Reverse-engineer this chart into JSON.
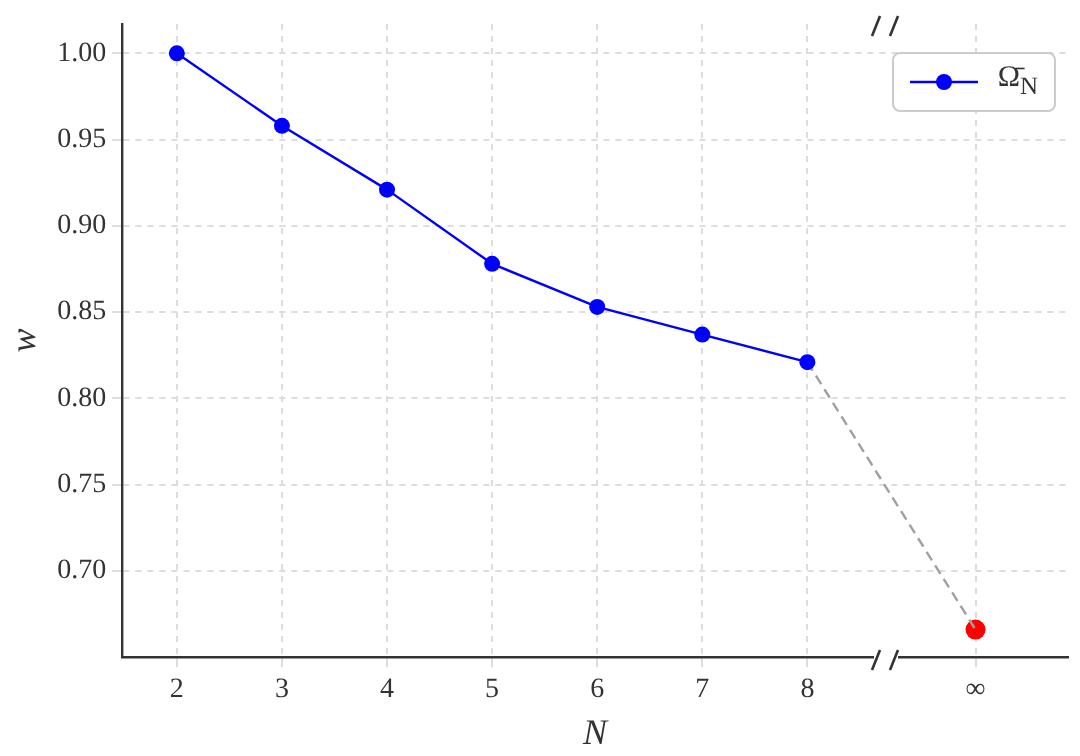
{
  "chart_data": {
    "type": "line",
    "xlabel": "N",
    "ylabel": "w",
    "categories": [
      "2",
      "3",
      "4",
      "5",
      "6",
      "7",
      "8",
      "∞"
    ],
    "series": [
      {
        "name": "Ω̄$_{N}$",
        "color": "#0000ff",
        "marker": "circle",
        "line_style": "solid",
        "values": [
          1.0,
          0.958,
          0.921,
          0.878,
          0.853,
          0.837,
          0.821,
          null
        ]
      },
      {
        "color": "#a0a0a0",
        "marker": "none",
        "line_style": "dashed",
        "values": [
          null,
          null,
          null,
          null,
          null,
          null,
          0.821,
          0.666
        ]
      },
      {
        "type": "scatter",
        "color": "#ff0000",
        "marker": "circle",
        "values": [
          null,
          null,
          null,
          null,
          null,
          null,
          null,
          0.666
        ]
      }
    ],
    "ylim": [
      0.65,
      1.017
    ],
    "yticks": [
      {
        "value": 0.7,
        "label": "0.70"
      },
      {
        "value": 0.75,
        "label": "0.75"
      },
      {
        "value": 0.8,
        "label": "0.80"
      },
      {
        "value": 0.85,
        "label": "0.85"
      },
      {
        "value": 0.9,
        "label": "0.90"
      },
      {
        "value": 0.95,
        "label": "0.95"
      },
      {
        "value": 1.0,
        "label": "1.00"
      }
    ],
    "grid": true,
    "legend": "top right"
  }
}
